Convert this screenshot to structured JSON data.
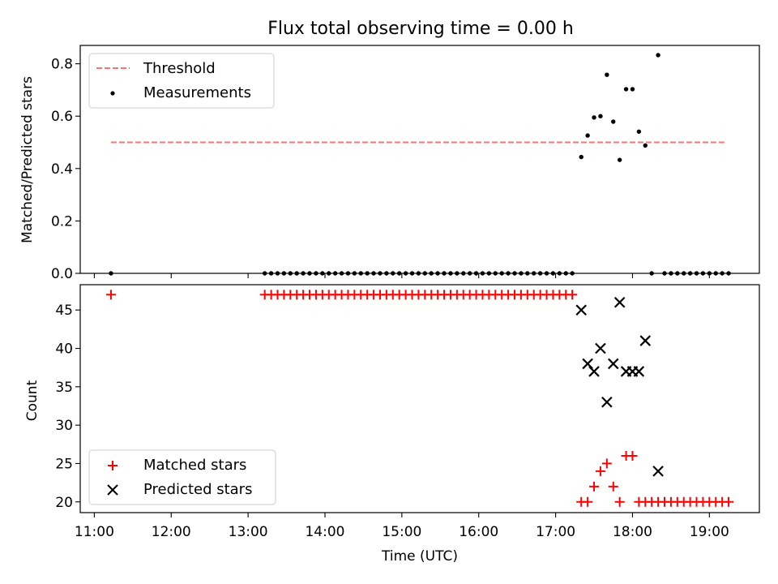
{
  "chart_data": [
    {
      "type": "scatter",
      "title": "Flux total observing time = 0.00 h",
      "xlabel": "",
      "ylabel": "Matched/Predicted stars",
      "xlim": [
        "10:49",
        "19:39"
      ],
      "ylim": [
        0,
        0.87
      ],
      "yticks": [
        0.0,
        0.2,
        0.4,
        0.6,
        0.8
      ],
      "ytick_labels": [
        "0.0",
        "0.2",
        "0.4",
        "0.6",
        "0.8"
      ],
      "legend_position": "top-left",
      "series": [
        {
          "name": "Threshold",
          "kind": "dashed-line",
          "color": "#ff7070",
          "x": [
            "11:13",
            "19:12"
          ],
          "y": [
            0.5,
            0.5
          ]
        },
        {
          "name": "Measurements",
          "kind": "points",
          "color": "#000000",
          "x": [
            "11:13",
            "13:13",
            "13:18",
            "13:23",
            "13:28",
            "13:33",
            "13:38",
            "13:43",
            "13:48",
            "13:53",
            "13:58",
            "14:03",
            "14:08",
            "14:13",
            "14:18",
            "14:23",
            "14:28",
            "14:33",
            "14:38",
            "14:43",
            "14:48",
            "14:53",
            "14:58",
            "15:03",
            "15:08",
            "15:13",
            "15:18",
            "15:23",
            "15:28",
            "15:33",
            "15:38",
            "15:43",
            "15:48",
            "15:53",
            "15:58",
            "16:03",
            "16:08",
            "16:13",
            "16:18",
            "16:23",
            "16:28",
            "16:33",
            "16:38",
            "16:43",
            "16:48",
            "16:53",
            "16:58",
            "17:03",
            "17:08",
            "17:13",
            "17:20",
            "17:25",
            "17:30",
            "17:35",
            "17:40",
            "17:45",
            "17:50",
            "17:55",
            "18:00",
            "18:05",
            "18:10",
            "18:15",
            "18:20",
            "18:25",
            "18:30",
            "18:35",
            "18:40",
            "18:45",
            "18:50",
            "18:55",
            "19:00",
            "19:05",
            "19:10",
            "19:15"
          ],
          "y": [
            0,
            0,
            0,
            0,
            0,
            0,
            0,
            0,
            0,
            0,
            0,
            0,
            0,
            0,
            0,
            0,
            0,
            0,
            0,
            0,
            0,
            0,
            0,
            0,
            0,
            0,
            0,
            0,
            0,
            0,
            0,
            0,
            0,
            0,
            0,
            0,
            0,
            0,
            0,
            0,
            0,
            0,
            0,
            0,
            0,
            0,
            0,
            0,
            0,
            0,
            0.444,
            0.526,
            0.595,
            0.6,
            0.758,
            0.579,
            0.433,
            0.703,
            0.703,
            0.541,
            0.488,
            0,
            0.833,
            0,
            0,
            0,
            0,
            0,
            0,
            0,
            0,
            0,
            0,
            0
          ]
        }
      ]
    },
    {
      "type": "scatter",
      "title": "",
      "xlabel": "Time (UTC)",
      "ylabel": "Count",
      "xlim": [
        "10:49",
        "19:39"
      ],
      "ylim": [
        18.6,
        48.3
      ],
      "yticks": [
        20,
        25,
        30,
        35,
        40,
        45
      ],
      "ytick_labels": [
        "20",
        "25",
        "30",
        "35",
        "40",
        "45"
      ],
      "xticks": [
        "11:00",
        "12:00",
        "13:00",
        "14:00",
        "15:00",
        "16:00",
        "17:00",
        "18:00",
        "19:00"
      ],
      "legend_position": "bottom-left",
      "series": [
        {
          "name": "Matched stars",
          "kind": "plus",
          "color": "#ff0000",
          "x": [
            "11:13",
            "13:13",
            "13:18",
            "13:23",
            "13:28",
            "13:33",
            "13:38",
            "13:43",
            "13:48",
            "13:53",
            "13:58",
            "14:03",
            "14:08",
            "14:13",
            "14:18",
            "14:23",
            "14:28",
            "14:33",
            "14:38",
            "14:43",
            "14:48",
            "14:53",
            "14:58",
            "15:03",
            "15:08",
            "15:13",
            "15:18",
            "15:23",
            "15:28",
            "15:33",
            "15:38",
            "15:43",
            "15:48",
            "15:53",
            "15:58",
            "16:03",
            "16:08",
            "16:13",
            "16:18",
            "16:23",
            "16:28",
            "16:33",
            "16:38",
            "16:43",
            "16:48",
            "16:53",
            "16:58",
            "17:03",
            "17:08",
            "17:13",
            "17:20",
            "17:25",
            "17:30",
            "17:35",
            "17:40",
            "17:45",
            "17:50",
            "17:55",
            "18:00",
            "18:05",
            "18:10",
            "18:15",
            "18:20",
            "18:25",
            "18:30",
            "18:35",
            "18:40",
            "18:45",
            "18:50",
            "18:55",
            "19:00",
            "19:05",
            "19:10",
            "19:15"
          ],
          "y": [
            47,
            47,
            47,
            47,
            47,
            47,
            47,
            47,
            47,
            47,
            47,
            47,
            47,
            47,
            47,
            47,
            47,
            47,
            47,
            47,
            47,
            47,
            47,
            47,
            47,
            47,
            47,
            47,
            47,
            47,
            47,
            47,
            47,
            47,
            47,
            47,
            47,
            47,
            47,
            47,
            47,
            47,
            47,
            47,
            47,
            47,
            47,
            47,
            47,
            47,
            20,
            20,
            22,
            24,
            25,
            22,
            20,
            26,
            26,
            20,
            20,
            20,
            20,
            20,
            20,
            20,
            20,
            20,
            20,
            20,
            20,
            20,
            20,
            20
          ]
        },
        {
          "name": "Predicted stars",
          "kind": "x",
          "color": "#000000",
          "x": [
            "17:20",
            "17:25",
            "17:30",
            "17:35",
            "17:40",
            "17:45",
            "17:50",
            "17:55",
            "18:00",
            "18:05",
            "18:10",
            "18:20"
          ],
          "y": [
            45,
            38,
            37,
            40,
            33,
            38,
            46,
            37,
            37,
            37,
            41,
            24
          ]
        }
      ]
    }
  ]
}
